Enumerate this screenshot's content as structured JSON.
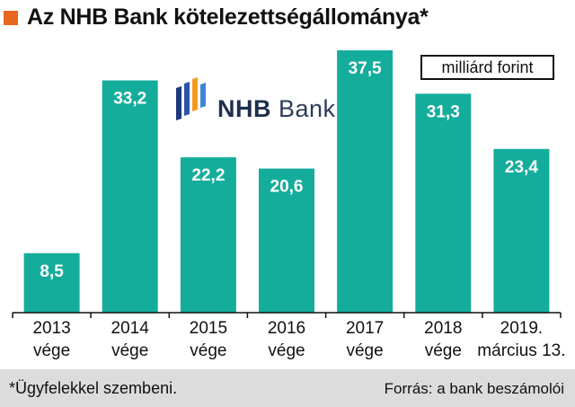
{
  "header": {
    "title": "Az NHB Bank kötelezettségállománya*"
  },
  "unit_label": "milliárd forint",
  "logo": {
    "text_bold": "NHB",
    "text_regular": "Bank"
  },
  "footer": {
    "footnote": "*Ügyfelekkel szembeni.",
    "source": "Forrás: a bank beszámolói"
  },
  "colors": {
    "bar": "#14ad9c",
    "title_mark": "#e8681f",
    "axis": "#111111",
    "footer_bg": "#dcdcdc",
    "logo_blue": "#1d3a7a",
    "logo_orange": "#f39a1d"
  },
  "chart_data": {
    "type": "bar",
    "title": "Az NHB Bank kötelezettségállománya*",
    "ylabel": "milliárd forint",
    "categories": [
      [
        "2013",
        "vége"
      ],
      [
        "2014",
        "vége"
      ],
      [
        "2015",
        "vége"
      ],
      [
        "2016",
        "vége"
      ],
      [
        "2017",
        "vége"
      ],
      [
        "2018",
        "vége"
      ],
      [
        "2019.",
        "március 13."
      ]
    ],
    "values": [
      8.5,
      33.2,
      22.2,
      20.6,
      37.5,
      31.3,
      23.4
    ],
    "value_labels": [
      "8,5",
      "33,2",
      "22,2",
      "20,6",
      "37,5",
      "31,3",
      "23,4"
    ],
    "ylim": [
      0,
      37.5
    ],
    "grid": false,
    "legend": "none"
  }
}
